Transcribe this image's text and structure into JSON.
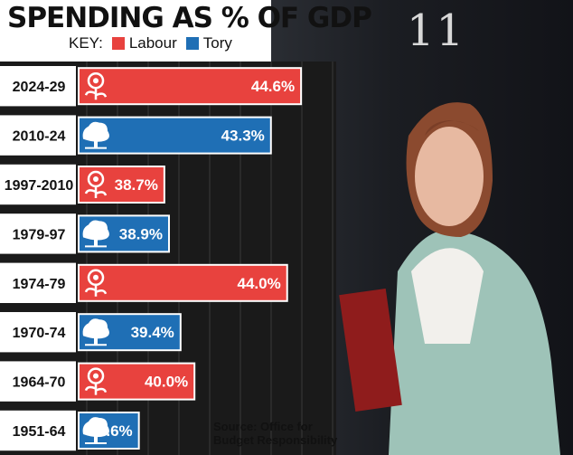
{
  "title": "SPENDING AS % OF GDP",
  "key": {
    "label": "KEY:",
    "entries": [
      {
        "name": "Labour",
        "color": "#e8423e"
      },
      {
        "name": "Tory",
        "color": "#1f6fb5"
      }
    ]
  },
  "source": "Source: Office for\nBudget Responsibility",
  "photo": {
    "door_number": "11"
  },
  "chart_data": {
    "type": "bar",
    "orientation": "horizontal",
    "categories": [
      "2024-29",
      "2010-24",
      "1997-2010",
      "1979-97",
      "1974-79",
      "1970-74",
      "1964-70",
      "1951-64"
    ],
    "values": [
      44.6,
      43.3,
      38.7,
      38.9,
      44.0,
      39.4,
      40.0,
      37.6
    ],
    "value_labels": [
      "44.6%",
      "43.3%",
      "38.7%",
      "38.9%",
      "44.0%",
      "39.4%",
      "40.0%",
      "37.6%"
    ],
    "party": [
      "Labour",
      "Tory",
      "Labour",
      "Tory",
      "Labour",
      "Tory",
      "Labour",
      "Tory"
    ],
    "party_colors": {
      "Labour": "#e8423e",
      "Tory": "#1f6fb5"
    },
    "title": "SPENDING AS % OF GDP",
    "xlim": [
      35,
      46
    ],
    "grid": true
  }
}
